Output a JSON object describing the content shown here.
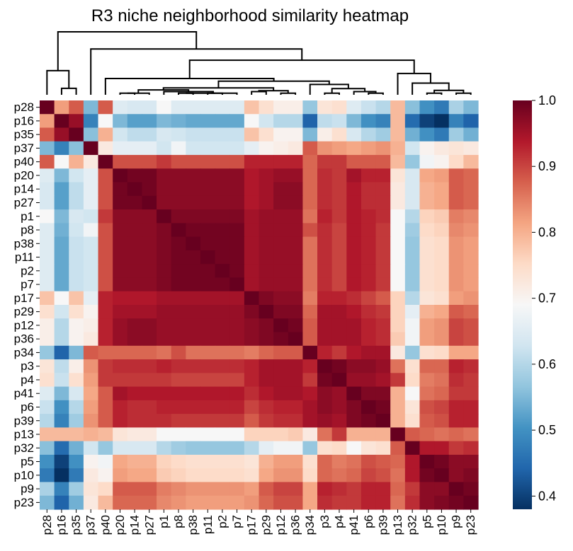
{
  "chart_data": {
    "type": "heatmap",
    "title": "R3 niche neighborhood similarity heatmap",
    "xlabel": "",
    "ylabel": "",
    "labels": [
      "p28",
      "p16",
      "p35",
      "p37",
      "p40",
      "p20",
      "p14",
      "p27",
      "p1",
      "p8",
      "p38",
      "p11",
      "p2",
      "p7",
      "p17",
      "p29",
      "p12",
      "p36",
      "p34",
      "p3",
      "p4",
      "p41",
      "p6",
      "p39",
      "p13",
      "p32",
      "p5",
      "p10",
      "p9",
      "p23"
    ],
    "matrix": [
      [
        1.0,
        0.82,
        0.88,
        0.55,
        0.88,
        0.65,
        0.64,
        0.64,
        0.69,
        0.65,
        0.65,
        0.65,
        0.65,
        0.65,
        0.78,
        0.74,
        0.71,
        0.71,
        0.57,
        0.73,
        0.74,
        0.65,
        0.62,
        0.6,
        0.79,
        0.56,
        0.5,
        0.47,
        0.59,
        0.55
      ],
      [
        0.82,
        1.0,
        0.96,
        0.48,
        0.69,
        0.55,
        0.52,
        0.52,
        0.55,
        0.54,
        0.53,
        0.53,
        0.53,
        0.53,
        0.69,
        0.63,
        0.6,
        0.6,
        0.44,
        0.61,
        0.62,
        0.55,
        0.5,
        0.48,
        0.79,
        0.45,
        0.4,
        0.38,
        0.48,
        0.44
      ],
      [
        0.88,
        0.96,
        1.0,
        0.56,
        0.8,
        0.63,
        0.61,
        0.61,
        0.64,
        0.63,
        0.62,
        0.62,
        0.62,
        0.62,
        0.78,
        0.74,
        0.7,
        0.7,
        0.55,
        0.71,
        0.74,
        0.64,
        0.6,
        0.58,
        0.79,
        0.54,
        0.5,
        0.47,
        0.58,
        0.54
      ],
      [
        0.55,
        0.48,
        0.56,
        1.0,
        0.72,
        0.66,
        0.66,
        0.66,
        0.63,
        0.68,
        0.63,
        0.63,
        0.63,
        0.63,
        0.66,
        0.7,
        0.71,
        0.72,
        0.88,
        0.83,
        0.82,
        0.81,
        0.82,
        0.83,
        0.8,
        0.63,
        0.7,
        0.72,
        0.73,
        0.72
      ],
      [
        0.88,
        0.69,
        0.8,
        0.72,
        1.0,
        0.89,
        0.89,
        0.89,
        0.91,
        0.89,
        0.89,
        0.89,
        0.89,
        0.89,
        0.93,
        0.93,
        0.93,
        0.93,
        0.87,
        0.91,
        0.91,
        0.88,
        0.88,
        0.88,
        0.79,
        0.57,
        0.68,
        0.7,
        0.75,
        0.79
      ],
      [
        0.65,
        0.55,
        0.63,
        0.66,
        0.89,
        1.0,
        0.99,
        0.99,
        0.97,
        0.97,
        0.97,
        0.97,
        0.97,
        0.97,
        0.94,
        0.95,
        0.96,
        0.96,
        0.87,
        0.92,
        0.91,
        0.95,
        0.93,
        0.93,
        0.73,
        0.64,
        0.81,
        0.82,
        0.88,
        0.87
      ],
      [
        0.64,
        0.52,
        0.61,
        0.66,
        0.89,
        0.99,
        1.0,
        0.99,
        0.97,
        0.97,
        0.97,
        0.97,
        0.97,
        0.97,
        0.94,
        0.95,
        0.97,
        0.97,
        0.87,
        0.92,
        0.91,
        0.94,
        0.92,
        0.92,
        0.72,
        0.64,
        0.8,
        0.81,
        0.88,
        0.87
      ],
      [
        0.64,
        0.52,
        0.61,
        0.66,
        0.89,
        0.99,
        0.99,
        1.0,
        0.97,
        0.97,
        0.97,
        0.97,
        0.97,
        0.97,
        0.94,
        0.95,
        0.97,
        0.97,
        0.87,
        0.92,
        0.91,
        0.94,
        0.92,
        0.92,
        0.72,
        0.64,
        0.8,
        0.81,
        0.88,
        0.87
      ],
      [
        0.69,
        0.55,
        0.64,
        0.63,
        0.91,
        0.97,
        0.97,
        0.97,
        1.0,
        0.98,
        0.98,
        0.98,
        0.98,
        0.98,
        0.95,
        0.96,
        0.96,
        0.96,
        0.86,
        0.93,
        0.91,
        0.94,
        0.93,
        0.92,
        0.69,
        0.6,
        0.76,
        0.77,
        0.85,
        0.84
      ],
      [
        0.65,
        0.54,
        0.63,
        0.68,
        0.89,
        0.97,
        0.97,
        0.97,
        0.98,
        1.0,
        0.99,
        0.99,
        0.99,
        0.99,
        0.95,
        0.96,
        0.96,
        0.96,
        0.89,
        0.92,
        0.9,
        0.94,
        0.93,
        0.91,
        0.69,
        0.58,
        0.75,
        0.76,
        0.84,
        0.83
      ],
      [
        0.65,
        0.53,
        0.62,
        0.63,
        0.89,
        0.97,
        0.97,
        0.97,
        0.98,
        0.99,
        1.0,
        0.99,
        0.99,
        0.99,
        0.95,
        0.96,
        0.96,
        0.96,
        0.86,
        0.92,
        0.9,
        0.94,
        0.93,
        0.91,
        0.69,
        0.57,
        0.74,
        0.75,
        0.83,
        0.82
      ],
      [
        0.65,
        0.53,
        0.62,
        0.63,
        0.89,
        0.97,
        0.97,
        0.97,
        0.98,
        0.99,
        0.99,
        1.0,
        0.99,
        0.99,
        0.95,
        0.96,
        0.96,
        0.96,
        0.86,
        0.92,
        0.9,
        0.94,
        0.93,
        0.91,
        0.69,
        0.57,
        0.74,
        0.75,
        0.83,
        0.82
      ],
      [
        0.65,
        0.53,
        0.62,
        0.63,
        0.89,
        0.97,
        0.97,
        0.97,
        0.98,
        0.99,
        0.99,
        0.99,
        1.0,
        0.99,
        0.95,
        0.96,
        0.96,
        0.96,
        0.86,
        0.92,
        0.9,
        0.94,
        0.93,
        0.91,
        0.69,
        0.57,
        0.74,
        0.75,
        0.83,
        0.82
      ],
      [
        0.65,
        0.53,
        0.62,
        0.63,
        0.89,
        0.97,
        0.97,
        0.97,
        0.98,
        0.99,
        0.99,
        0.99,
        0.99,
        1.0,
        0.95,
        0.96,
        0.96,
        0.96,
        0.86,
        0.92,
        0.9,
        0.94,
        0.93,
        0.91,
        0.69,
        0.57,
        0.74,
        0.75,
        0.83,
        0.82
      ],
      [
        0.78,
        0.69,
        0.78,
        0.66,
        0.93,
        0.94,
        0.94,
        0.94,
        0.95,
        0.95,
        0.95,
        0.95,
        0.95,
        0.95,
        1.0,
        0.98,
        0.97,
        0.97,
        0.85,
        0.93,
        0.93,
        0.92,
        0.9,
        0.88,
        0.76,
        0.6,
        0.73,
        0.74,
        0.82,
        0.83
      ],
      [
        0.74,
        0.63,
        0.74,
        0.7,
        0.93,
        0.95,
        0.95,
        0.95,
        0.96,
        0.96,
        0.96,
        0.96,
        0.96,
        0.96,
        0.98,
        1.0,
        0.98,
        0.98,
        0.87,
        0.95,
        0.95,
        0.94,
        0.92,
        0.91,
        0.76,
        0.66,
        0.8,
        0.81,
        0.88,
        0.87
      ],
      [
        0.71,
        0.6,
        0.7,
        0.71,
        0.93,
        0.96,
        0.97,
        0.97,
        0.96,
        0.96,
        0.96,
        0.96,
        0.96,
        0.96,
        0.97,
        0.98,
        1.0,
        0.99,
        0.88,
        0.95,
        0.95,
        0.95,
        0.93,
        0.92,
        0.76,
        0.68,
        0.82,
        0.83,
        0.9,
        0.89
      ],
      [
        0.71,
        0.6,
        0.7,
        0.72,
        0.93,
        0.96,
        0.97,
        0.97,
        0.96,
        0.96,
        0.96,
        0.96,
        0.96,
        0.96,
        0.97,
        0.98,
        0.99,
        1.0,
        0.88,
        0.95,
        0.95,
        0.95,
        0.93,
        0.92,
        0.77,
        0.68,
        0.82,
        0.83,
        0.9,
        0.89
      ],
      [
        0.57,
        0.44,
        0.55,
        0.88,
        0.87,
        0.87,
        0.87,
        0.87,
        0.86,
        0.89,
        0.86,
        0.86,
        0.86,
        0.86,
        0.85,
        0.87,
        0.88,
        0.88,
        1.0,
        0.93,
        0.91,
        0.94,
        0.95,
        0.95,
        0.72,
        0.57,
        0.74,
        0.75,
        0.81,
        0.81
      ],
      [
        0.73,
        0.61,
        0.71,
        0.83,
        0.91,
        0.92,
        0.92,
        0.92,
        0.93,
        0.92,
        0.92,
        0.92,
        0.92,
        0.92,
        0.93,
        0.95,
        0.95,
        0.95,
        0.93,
        1.0,
        0.99,
        0.97,
        0.97,
        0.96,
        0.86,
        0.74,
        0.87,
        0.87,
        0.93,
        0.92
      ],
      [
        0.74,
        0.62,
        0.74,
        0.82,
        0.91,
        0.91,
        0.91,
        0.91,
        0.91,
        0.9,
        0.9,
        0.9,
        0.9,
        0.9,
        0.93,
        0.95,
        0.95,
        0.95,
        0.91,
        0.99,
        1.0,
        0.96,
        0.96,
        0.95,
        0.91,
        0.75,
        0.85,
        0.86,
        0.92,
        0.91
      ],
      [
        0.65,
        0.55,
        0.64,
        0.81,
        0.88,
        0.95,
        0.94,
        0.94,
        0.94,
        0.94,
        0.94,
        0.94,
        0.94,
        0.94,
        0.92,
        0.94,
        0.95,
        0.95,
        0.94,
        0.97,
        0.96,
        1.0,
        0.98,
        0.98,
        0.8,
        0.69,
        0.86,
        0.87,
        0.91,
        0.91
      ],
      [
        0.62,
        0.5,
        0.6,
        0.82,
        0.88,
        0.93,
        0.92,
        0.92,
        0.93,
        0.93,
        0.93,
        0.93,
        0.93,
        0.93,
        0.9,
        0.92,
        0.93,
        0.93,
        0.95,
        0.97,
        0.96,
        0.98,
        1.0,
        0.99,
        0.8,
        0.73,
        0.89,
        0.9,
        0.93,
        0.93
      ],
      [
        0.6,
        0.48,
        0.58,
        0.83,
        0.88,
        0.93,
        0.92,
        0.92,
        0.92,
        0.91,
        0.91,
        0.91,
        0.91,
        0.91,
        0.88,
        0.91,
        0.92,
        0.92,
        0.95,
        0.96,
        0.95,
        0.98,
        0.99,
        1.0,
        0.8,
        0.74,
        0.88,
        0.89,
        0.93,
        0.93
      ],
      [
        0.79,
        0.79,
        0.79,
        0.8,
        0.79,
        0.73,
        0.72,
        0.72,
        0.69,
        0.69,
        0.69,
        0.69,
        0.69,
        0.69,
        0.76,
        0.76,
        0.76,
        0.77,
        0.72,
        0.86,
        0.91,
        0.8,
        0.8,
        0.8,
        1.0,
        0.88,
        0.87,
        0.86,
        0.87,
        0.86
      ],
      [
        0.56,
        0.45,
        0.54,
        0.63,
        0.57,
        0.64,
        0.64,
        0.64,
        0.6,
        0.58,
        0.57,
        0.57,
        0.57,
        0.57,
        0.6,
        0.66,
        0.68,
        0.68,
        0.57,
        0.74,
        0.75,
        0.69,
        0.73,
        0.74,
        0.88,
        1.0,
        0.94,
        0.94,
        0.91,
        0.92
      ],
      [
        0.5,
        0.4,
        0.5,
        0.7,
        0.68,
        0.81,
        0.8,
        0.8,
        0.76,
        0.75,
        0.74,
        0.74,
        0.74,
        0.74,
        0.73,
        0.8,
        0.82,
        0.82,
        0.74,
        0.87,
        0.85,
        0.86,
        0.89,
        0.88,
        0.87,
        0.94,
        1.0,
        0.99,
        0.97,
        0.97
      ],
      [
        0.47,
        0.38,
        0.47,
        0.72,
        0.7,
        0.82,
        0.81,
        0.81,
        0.77,
        0.76,
        0.75,
        0.75,
        0.75,
        0.75,
        0.74,
        0.81,
        0.83,
        0.83,
        0.75,
        0.87,
        0.86,
        0.87,
        0.9,
        0.89,
        0.86,
        0.94,
        0.99,
        1.0,
        0.97,
        0.98
      ],
      [
        0.59,
        0.48,
        0.58,
        0.73,
        0.75,
        0.88,
        0.88,
        0.88,
        0.85,
        0.84,
        0.83,
        0.83,
        0.83,
        0.83,
        0.82,
        0.88,
        0.9,
        0.9,
        0.81,
        0.93,
        0.92,
        0.91,
        0.93,
        0.93,
        0.87,
        0.91,
        0.97,
        0.97,
        1.0,
        0.99
      ],
      [
        0.55,
        0.44,
        0.54,
        0.72,
        0.79,
        0.87,
        0.87,
        0.87,
        0.84,
        0.83,
        0.82,
        0.82,
        0.82,
        0.82,
        0.83,
        0.87,
        0.89,
        0.89,
        0.81,
        0.92,
        0.91,
        0.91,
        0.93,
        0.93,
        0.86,
        0.92,
        0.97,
        0.98,
        0.99,
        1.0
      ]
    ],
    "vmin": 0.38,
    "vmax": 1.0,
    "colormap": "RdBu_r",
    "colorbar_ticks": [
      "0.4",
      "0.5",
      "0.6",
      "0.7",
      "0.8",
      "0.9",
      "1.0"
    ],
    "dendrogram": "top",
    "grid": false,
    "legend": "colorbar-right"
  }
}
